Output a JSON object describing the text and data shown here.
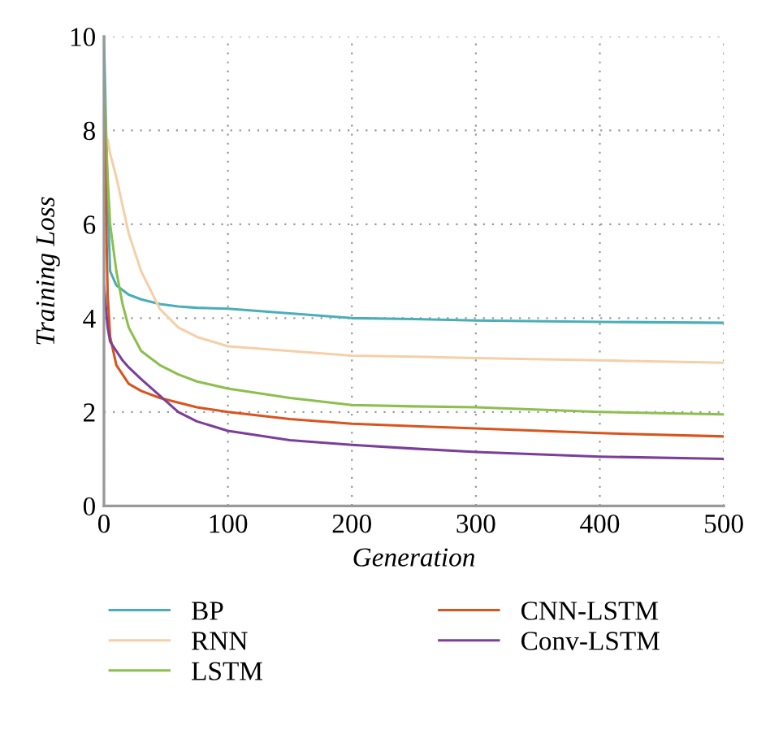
{
  "chart_data": {
    "type": "line",
    "xlabel": "Generation",
    "ylabel": "Training Loss",
    "xlim": [
      0,
      500
    ],
    "ylim": [
      0,
      10
    ],
    "xticks": [
      0,
      100,
      200,
      300,
      400,
      500
    ],
    "yticks": [
      0,
      2,
      4,
      6,
      8,
      10
    ],
    "grid": true,
    "legend": "bottom",
    "marker": "none",
    "line_style": "solid",
    "x": [
      0,
      3,
      5,
      10,
      15,
      20,
      30,
      45,
      60,
      75,
      100,
      150,
      200,
      250,
      300,
      400,
      500
    ],
    "series": [
      {
        "name": "BP",
        "color": "#4aaeb8",
        "values": [
          10,
          6.5,
          5.0,
          4.7,
          4.6,
          4.5,
          4.4,
          4.3,
          4.25,
          4.22,
          4.2,
          4.1,
          4.0,
          3.98,
          3.95,
          3.92,
          3.9
        ]
      },
      {
        "name": "RNN",
        "color": "#f5cfa8",
        "values": [
          null,
          7.8,
          7.5,
          7.0,
          6.4,
          5.8,
          5.0,
          4.2,
          3.8,
          3.6,
          3.4,
          3.3,
          3.2,
          3.18,
          3.15,
          3.1,
          3.05
        ]
      },
      {
        "name": "LSTM",
        "color": "#8cbf4e",
        "values": [
          9,
          7,
          6,
          5,
          4.3,
          3.8,
          3.3,
          3.0,
          2.8,
          2.65,
          2.5,
          2.3,
          2.15,
          2.12,
          2.1,
          2.0,
          1.95
        ]
      },
      {
        "name": "CNN-LSTM",
        "color": "#d9541e",
        "values": [
          8.5,
          4.5,
          3.6,
          3.0,
          2.8,
          2.6,
          2.45,
          2.3,
          2.2,
          2.1,
          2.0,
          1.85,
          1.75,
          1.7,
          1.65,
          1.55,
          1.48
        ]
      },
      {
        "name": "Conv-LSTM",
        "color": "#7b3f99",
        "values": [
          4.7,
          3.8,
          3.5,
          3.3,
          3.1,
          2.95,
          2.7,
          2.35,
          2.0,
          1.8,
          1.6,
          1.4,
          1.3,
          1.22,
          1.15,
          1.05,
          1.0
        ]
      }
    ]
  }
}
